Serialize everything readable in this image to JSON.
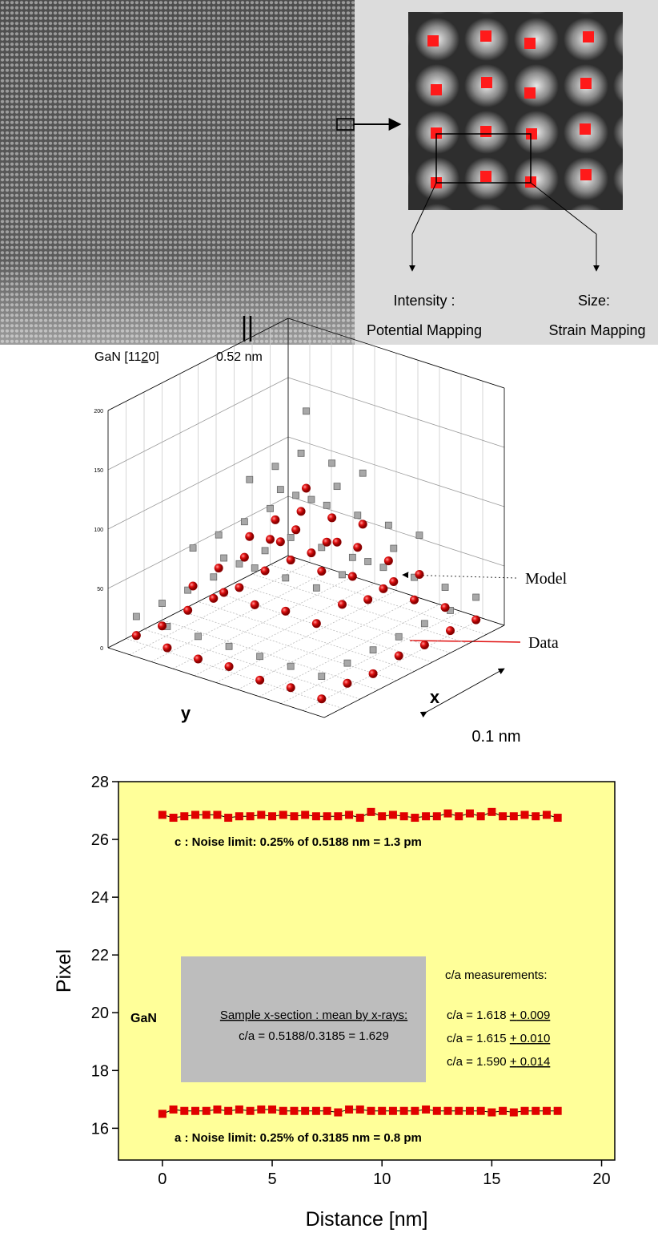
{
  "figure_top": {
    "caption_prefix": "GaN [11",
    "caption_bar": "2",
    "caption_suffix": "0]",
    "scale_label": "0.52 nm",
    "intensity_label": "Intensity :",
    "size_label": "Size:",
    "potential_label": "Potential Mapping",
    "strain_label": "Strain Mapping"
  },
  "chart_data": [
    {
      "type": "scatter3d",
      "x_label": "x",
      "y_label": "y",
      "scale_label": "0.1 nm",
      "x": [
        1,
        2,
        3,
        4,
        5,
        6,
        7
      ],
      "y": [
        1,
        2,
        3,
        4,
        5,
        6,
        7
      ],
      "xlim": [
        0.5,
        7.5
      ],
      "ylim": [
        0.5,
        7.5
      ],
      "zlim": [
        0,
        200
      ],
      "zticks": [
        0,
        50,
        100,
        150,
        200
      ],
      "series": [
        {
          "name": "Model",
          "color": "#a8a8a8",
          "z": [
            [
              25,
              25,
              25,
              25,
              25,
              25,
              25
            ],
            [
              25,
              80,
              80,
              80,
              80,
              80,
              25
            ],
            [
              25,
              80,
              135,
              135,
              135,
              80,
              25
            ],
            [
              25,
              80,
              135,
              190,
              135,
              80,
              25
            ],
            [
              25,
              80,
              135,
              135,
              135,
              80,
              25
            ],
            [
              25,
              80,
              80,
              80,
              80,
              80,
              25
            ],
            [
              25,
              25,
              25,
              25,
              25,
              25,
              25
            ]
          ]
        },
        {
          "name": "Data",
          "color": "#e01010",
          "z": [
            [
              6,
              8,
              5,
              9,
              7,
              8,
              6
            ],
            [
              7,
              50,
              55,
              48,
              52,
              47,
              8
            ],
            [
              5,
              52,
              90,
              88,
              92,
              50,
              6
            ],
            [
              8,
              49,
              91,
              125,
              89,
              53,
              7
            ],
            [
              6,
              51,
              87,
              90,
              86,
              49,
              9
            ],
            [
              7,
              48,
              52,
              50,
              54,
              51,
              5
            ],
            [
              9,
              6,
              8,
              7,
              5,
              8,
              6
            ]
          ]
        }
      ]
    },
    {
      "type": "scatter",
      "x_label": "Distance [nm]",
      "y_label": "Pixel",
      "xlim": [
        -2,
        20.6
      ],
      "ylim": [
        14.9,
        28
      ],
      "xticks": [
        0,
        5,
        10,
        15,
        20
      ],
      "yticks": [
        16,
        18,
        20,
        22,
        24,
        26,
        28
      ],
      "x": [
        0,
        0.5,
        1,
        1.5,
        2,
        2.5,
        3,
        3.5,
        4,
        4.5,
        5,
        5.5,
        6,
        6.5,
        7,
        7.5,
        8,
        8.5,
        9,
        9.5,
        10,
        10.5,
        11,
        11.5,
        12,
        12.5,
        13,
        13.5,
        14,
        14.5,
        15,
        15.5,
        16,
        16.5,
        17,
        17.5,
        18
      ],
      "series": [
        {
          "color": "#e00000",
          "values": [
            26.85,
            26.75,
            26.8,
            26.85,
            26.85,
            26.85,
            26.75,
            26.8,
            26.8,
            26.85,
            26.8,
            26.85,
            26.8,
            26.85,
            26.8,
            26.8,
            26.8,
            26.85,
            26.75,
            26.95,
            26.8,
            26.85,
            26.8,
            26.75,
            26.8,
            26.8,
            26.9,
            26.8,
            26.9,
            26.8,
            26.95,
            26.8,
            26.8,
            26.85,
            26.8,
            26.85,
            26.75
          ]
        },
        {
          "color": "#e00000",
          "values": [
            16.5,
            16.65,
            16.6,
            16.6,
            16.6,
            16.65,
            16.6,
            16.65,
            16.6,
            16.65,
            16.65,
            16.6,
            16.6,
            16.6,
            16.6,
            16.6,
            16.55,
            16.65,
            16.65,
            16.6,
            16.6,
            16.6,
            16.6,
            16.6,
            16.65,
            16.6,
            16.6,
            16.6,
            16.6,
            16.6,
            16.55,
            16.6,
            16.55,
            16.6,
            16.6,
            16.6,
            16.6
          ]
        }
      ],
      "background": "#ffff99",
      "annotations": {
        "c_noise": "c : Noise limit: 0.25% of 0.5188 nm = 1.3 pm",
        "a_noise": "a : Noise limit: 0.25% of 0.3185 nm = 0.8 pm",
        "material": "GaN",
        "box_title": "Sample x-section : mean by x-rays:",
        "box_value": "c/a = 0.5188/0.3185 = 1.629",
        "measurements_title": "c/a measurements:",
        "measurements": [
          {
            "prefix": "c/a = 1.618 ",
            "sign": "+",
            "error": " 0.009"
          },
          {
            "prefix": "c/a = 1.615 ",
            "sign": "+",
            "error": " 0.010"
          },
          {
            "prefix": "c/a = 1.590 ",
            "sign": "+",
            "error": " 0.014"
          }
        ]
      }
    }
  ]
}
